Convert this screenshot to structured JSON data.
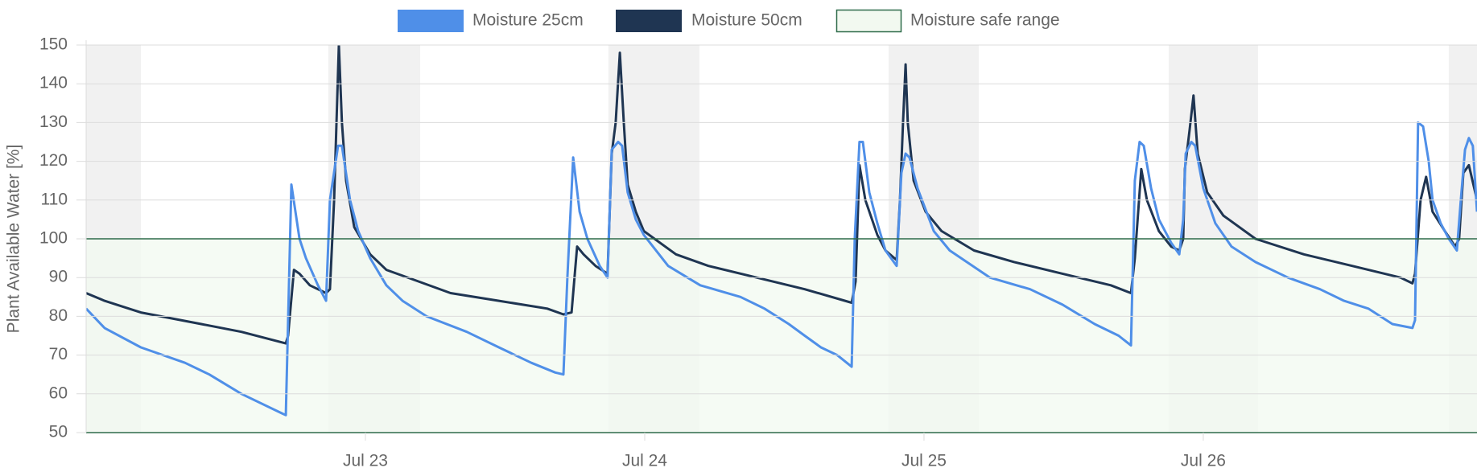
{
  "chart_data": {
    "type": "line",
    "ylabel": "Plant Available Water [%]",
    "ylim": [
      50,
      150
    ],
    "yticks": [
      50,
      60,
      70,
      80,
      90,
      100,
      110,
      120,
      130,
      140,
      150
    ],
    "xlim": [
      22,
      26.98
    ],
    "xticks": [
      {
        "value": 23,
        "label": "Jul 23"
      },
      {
        "value": 24,
        "label": "Jul 24"
      },
      {
        "value": 25,
        "label": "Jul 25"
      },
      {
        "value": 26,
        "label": "Jul 26"
      }
    ],
    "grid": true,
    "legend": "top",
    "bands": {
      "color": "#f1f1f1",
      "ranges": [
        [
          22,
          22.196
        ],
        [
          22.867,
          23.196
        ],
        [
          23.87,
          24.196
        ],
        [
          24.873,
          25.196
        ],
        [
          25.876,
          26.196
        ],
        [
          26.879,
          26.98
        ]
      ]
    },
    "safe_range": {
      "name": "Moisture safe range",
      "fill": "#f2f9f0",
      "stroke": "#2e6b4a",
      "range": [
        50,
        100
      ]
    },
    "series": [
      {
        "name": "Moisture 25cm",
        "color": "#4f8fe8",
        "x": [
          22.0,
          22.066,
          22.196,
          22.354,
          22.441,
          22.556,
          22.7,
          22.715,
          22.735,
          22.764,
          22.787,
          22.83,
          22.859,
          22.873,
          22.902,
          22.916,
          22.945,
          22.974,
          23.017,
          23.075,
          23.133,
          23.219,
          23.363,
          23.478,
          23.594,
          23.68,
          23.709,
          23.723,
          23.744,
          23.767,
          23.795,
          23.839,
          23.867,
          23.882,
          23.905,
          23.919,
          23.939,
          23.968,
          23.997,
          24.084,
          24.199,
          24.343,
          24.429,
          24.516,
          24.573,
          24.631,
          24.689,
          24.741,
          24.752,
          24.769,
          24.781,
          24.804,
          24.833,
          24.862,
          24.902,
          24.919,
          24.934,
          24.948,
          24.977,
          25.035,
          25.092,
          25.236,
          25.38,
          25.496,
          25.611,
          25.697,
          25.741,
          25.755,
          25.772,
          25.787,
          25.813,
          25.841,
          25.885,
          25.914,
          25.928,
          25.937,
          25.957,
          25.971,
          26.0,
          26.043,
          26.101,
          26.187,
          26.303,
          26.418,
          26.504,
          26.591,
          26.677,
          26.749,
          26.758,
          26.769,
          26.787,
          26.807,
          26.821,
          26.85,
          26.879,
          26.908,
          26.922,
          26.937,
          26.951,
          26.965,
          26.98
        ],
        "values": [
          82,
          77,
          72,
          68,
          65,
          60,
          55,
          54.5,
          114,
          100,
          95,
          88,
          84,
          110,
          124,
          124,
          110,
          102,
          95,
          88,
          84,
          80,
          76,
          72,
          68,
          65.5,
          65,
          90,
          121,
          107,
          100,
          93,
          90,
          123,
          125,
          124,
          112,
          105,
          101,
          93,
          88,
          85,
          82,
          78,
          75,
          72,
          70,
          67,
          100,
          125,
          125,
          112,
          104,
          97,
          93,
          117,
          122,
          121,
          113,
          102,
          97,
          90,
          87,
          83,
          78,
          75,
          72.5,
          115,
          125,
          124,
          113,
          105,
          99,
          96,
          105,
          122,
          125,
          124,
          113,
          104,
          98,
          94,
          90,
          87,
          84,
          82,
          78,
          77,
          79,
          130,
          129,
          120,
          110,
          104,
          100,
          97,
          110,
          123,
          126,
          124,
          107
        ]
      },
      {
        "name": "Moisture 50cm",
        "color": "#1f3552",
        "x": [
          22.0,
          22.066,
          22.196,
          22.412,
          22.556,
          22.715,
          22.723,
          22.744,
          22.764,
          22.801,
          22.859,
          22.873,
          22.888,
          22.905,
          22.916,
          22.931,
          22.96,
          23.017,
          23.075,
          23.19,
          23.305,
          23.478,
          23.651,
          23.709,
          23.738,
          23.758,
          23.781,
          23.824,
          23.867,
          23.882,
          23.896,
          23.911,
          23.925,
          23.939,
          23.968,
          23.997,
          24.112,
          24.228,
          24.401,
          24.573,
          24.741,
          24.755,
          24.769,
          24.79,
          24.833,
          24.862,
          24.902,
          24.914,
          24.925,
          24.934,
          24.942,
          24.963,
          25.006,
          25.063,
          25.179,
          25.323,
          25.496,
          25.669,
          25.741,
          25.755,
          25.778,
          25.798,
          25.841,
          25.885,
          25.914,
          25.928,
          25.934,
          25.951,
          25.965,
          25.98,
          26.014,
          26.072,
          26.187,
          26.36,
          26.533,
          26.706,
          26.749,
          26.758,
          26.778,
          26.798,
          26.821,
          26.865,
          26.902,
          26.916,
          26.931,
          26.951,
          26.98
        ],
        "values": [
          86,
          84,
          81,
          78,
          76,
          73,
          75,
          92,
          91,
          88,
          86,
          87,
          110,
          150,
          130,
          115,
          103,
          96,
          92,
          89,
          86,
          84,
          82,
          80.5,
          81,
          98,
          96,
          93,
          91,
          122,
          130,
          148,
          130,
          114,
          107,
          102,
          96,
          93,
          90,
          87,
          83.5,
          89,
          119,
          110,
          101,
          97,
          94.5,
          110,
          130,
          145,
          130,
          115,
          107,
          102,
          97,
          94,
          91,
          88,
          86,
          95,
          118,
          110,
          102,
          98,
          97,
          100,
          118,
          128,
          137,
          122,
          112,
          106,
          100,
          96,
          93,
          90,
          88.5,
          91,
          110,
          116,
          107,
          102,
          98,
          100,
          117,
          119,
          110
        ]
      }
    ]
  }
}
